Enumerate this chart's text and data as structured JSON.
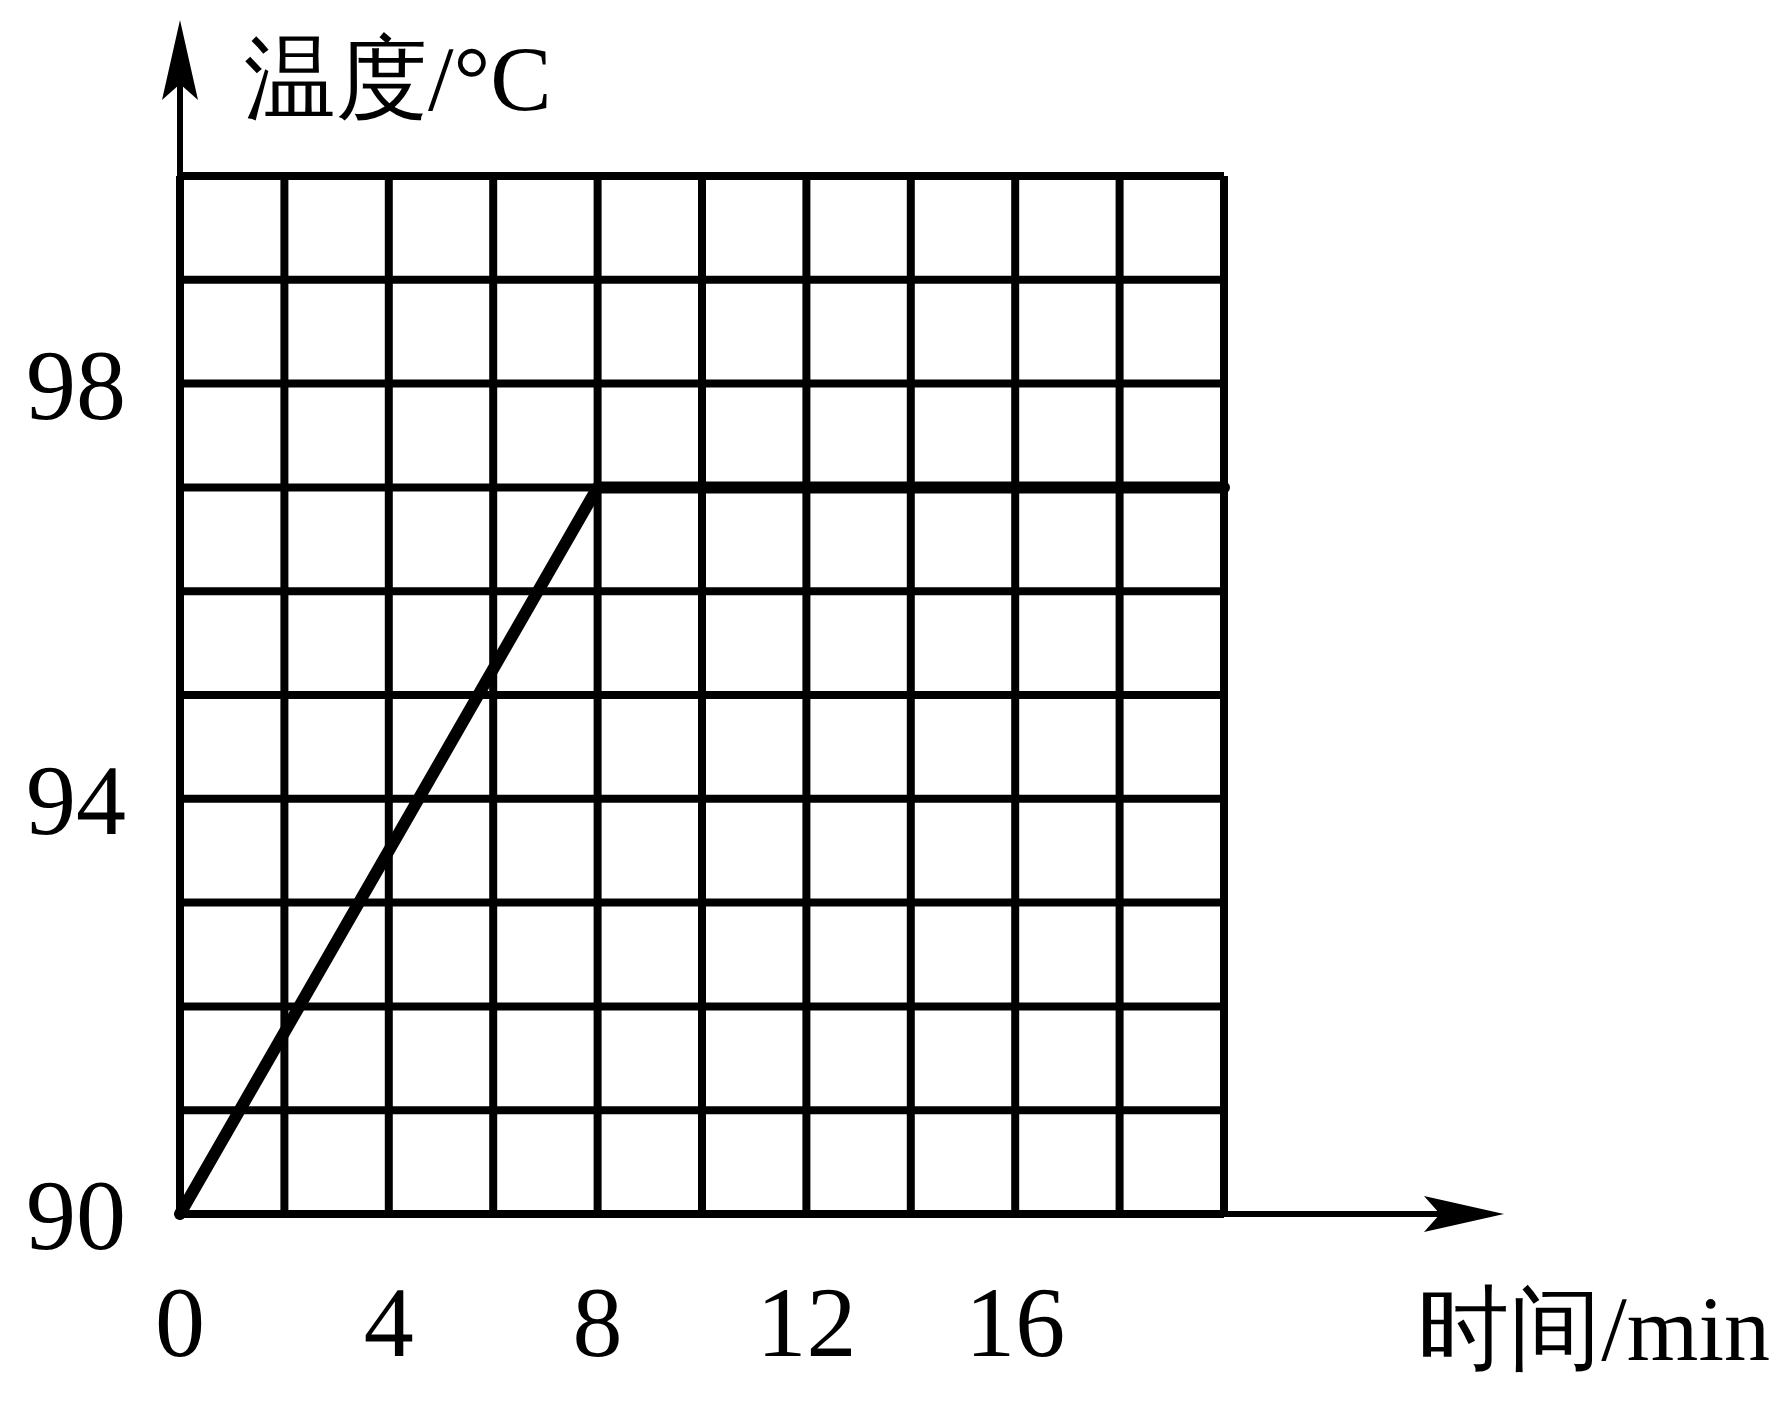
{
  "chart_data": {
    "type": "line",
    "xlabel": "时间/min",
    "ylabel": "温度/°C",
    "x": [
      0,
      8,
      20
    ],
    "series": [
      {
        "color": "#000000",
        "values": [
          90,
          97,
          97
        ]
      }
    ],
    "xlim": [
      0,
      20
    ],
    "ylim": [
      90,
      100
    ],
    "xticks": [
      0,
      {
        "value": 2,
        "label": null
      },
      4,
      {
        "value": 6,
        "label": null
      },
      8,
      {
        "value": 10,
        "label": null
      },
      12,
      {
        "value": 14,
        "label": null
      },
      16,
      {
        "value": 18,
        "label": null
      },
      {
        "value": 20,
        "label": null
      }
    ],
    "yticks": [
      90,
      {
        "value": 91,
        "label": null
      },
      {
        "value": 92,
        "label": null
      },
      {
        "value": 93,
        "label": null
      },
      94,
      {
        "value": 95,
        "label": null
      },
      {
        "value": 96,
        "label": null
      },
      {
        "value": 97,
        "label": null
      },
      98,
      {
        "value": 99,
        "label": null
      },
      {
        "value": 100,
        "label": null
      }
    ],
    "grid": true
  }
}
